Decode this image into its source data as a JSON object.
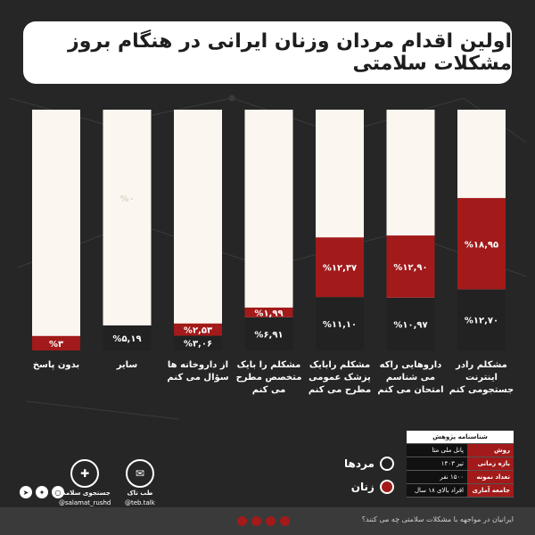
{
  "title": "اولین اقدام مردان وزنان ایرانی در هنگام بروز مشکلات سلامتی",
  "colors": {
    "men": "#222222",
    "women": "#a21a1a",
    "empty": "#fbf6ef",
    "background": "#262626"
  },
  "chart_data": {
    "type": "bar",
    "stacked": true,
    "title": "اولین اقدام مردان وزنان ایرانی در هنگام بروز مشکلات سلامتی",
    "ylim": [
      0,
      50
    ],
    "categories": [
      "مشکلم رادر اینترنت جستجومی کنم",
      "داروهایی راکه می شناسم امتحان می کنم",
      "مشکلم رابایک پزشک عمومی مطرح می کنم",
      "مشکلم را بایک متخصص مطرح می کنم",
      "از داروخانه ها سؤال می کنم",
      "سایر",
      "بدون پاسخ"
    ],
    "series": [
      {
        "name": "مردها",
        "values": [
          12.7,
          10.97,
          11.1,
          6.91,
          3.06,
          5.19,
          0
        ],
        "labels": [
          "%۱۲,۷۰",
          "%۱۰,۹۷",
          "%۱۱,۱۰",
          "%۶,۹۱",
          "%۳,۰۶",
          "%۵,۱۹",
          ""
        ]
      },
      {
        "name": "زنان",
        "values": [
          18.95,
          12.9,
          12.37,
          1.99,
          2.53,
          0,
          3
        ],
        "labels": [
          "%۱۸,۹۵",
          "%۱۲,۹۰",
          "%۱۲,۳۷",
          "%۱,۹۹",
          "%۲,۵۳",
          "",
          "%۳"
        ]
      }
    ],
    "extra_labels": [
      {
        "category_index": 5,
        "text": "%۰"
      }
    ]
  },
  "legend": {
    "men": "مردها",
    "women": "زنان"
  },
  "info_table": {
    "header": "شناسنامه پژوهش",
    "rows": [
      {
        "key": "روش",
        "value": "پانل ملی متا"
      },
      {
        "key": "بازه زمانی",
        "value": "تیر ۱۴۰۳"
      },
      {
        "key": "تعداد نمونه",
        "value": "۱۵۰۰ نفر"
      },
      {
        "key": "جامعه آماری",
        "value": "افراد بالای ۱۸ سال"
      }
    ]
  },
  "brands": [
    {
      "name": "طب تاک",
      "handle": "@teb.talk",
      "icon": "chat-bubble-icon"
    },
    {
      "name": "جستجوی سلامت",
      "handle": "@salamat_rushd",
      "icon": "logo-icon"
    }
  ],
  "footer_text": "ایرانیان در مواجهه با مشکلات سلامتی چه می کنند؟"
}
